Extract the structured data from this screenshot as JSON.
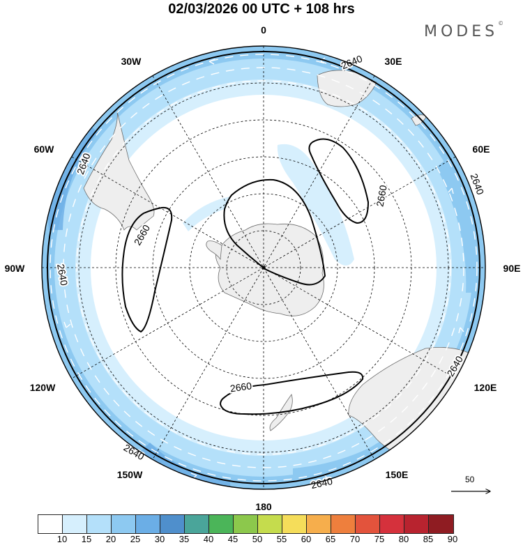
{
  "title": "02/03/2026  00 UTC  + 108 hrs",
  "brand": "MODES",
  "brand_mark": "©",
  "longitude_labels": [
    "0",
    "30E",
    "60E",
    "90E",
    "120E",
    "150E",
    "180",
    "150W",
    "120W",
    "90W",
    "60W",
    "30W"
  ],
  "contour_labels": [
    "2640",
    "2640",
    "2640",
    "2640",
    "2640",
    "2640",
    "2640",
    "2660",
    "2660",
    "2660"
  ],
  "wind_scale": {
    "value": "50"
  },
  "colorbar": {
    "ticks": [
      "10",
      "15",
      "20",
      "25",
      "30",
      "35",
      "40",
      "45",
      "50",
      "55",
      "60",
      "65",
      "70",
      "75",
      "80",
      "85",
      "90"
    ],
    "colors": [
      "#ffffff",
      "#d6effd",
      "#b4e0fa",
      "#8dc9f1",
      "#6baee6",
      "#4f8fcc",
      "#4aa59a",
      "#4bb559",
      "#8cc84c",
      "#c5dc4d",
      "#f5dd5a",
      "#f6ae4c",
      "#ee7f3d",
      "#e3533c",
      "#d5313c",
      "#b8232f",
      "#8f1c22"
    ]
  }
}
